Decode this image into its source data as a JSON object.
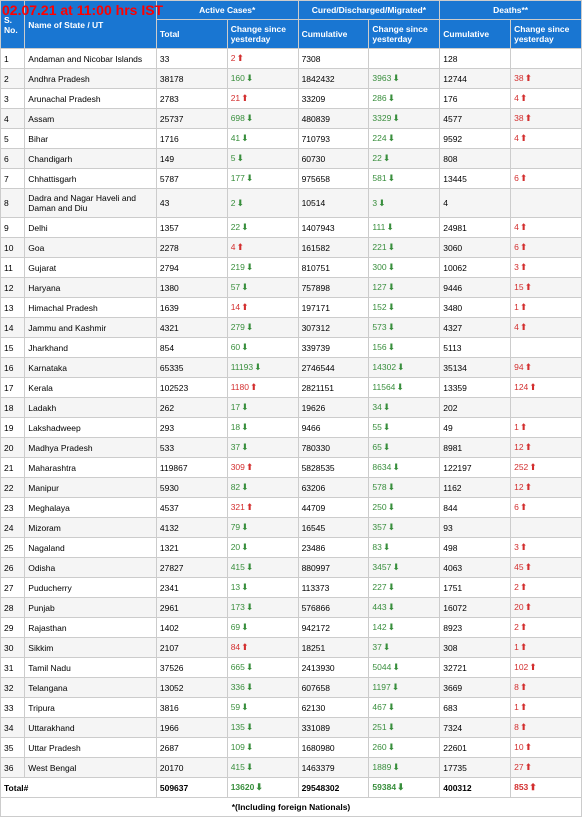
{
  "timestamp": "02.07.21 at 11:00 hrs IST",
  "colors": {
    "header_bg": "#1976d2",
    "header_text": "#ffffff",
    "row_even": "#f5f5f5",
    "row_odd": "#ffffff",
    "border": "#cccccc",
    "up": "#d32f2f",
    "down": "#388e3c",
    "timestamp": "#ff0000"
  },
  "headers": {
    "sno": "S. No.",
    "name": "Name of State / UT",
    "active": "Active Cases*",
    "cured": "Cured/Discharged/Migrated*",
    "deaths": "Deaths**",
    "total": "Total",
    "change": "Change since yesterday",
    "cumulative": "Cumulative"
  },
  "rows": [
    {
      "sno": "1",
      "name": "Andaman and Nicobar Islands",
      "active_total": "33",
      "active_change": "2",
      "active_dir": "up",
      "cured_cum": "7308",
      "cured_change": "",
      "cured_dir": "",
      "deaths_cum": "128",
      "deaths_change": "",
      "deaths_dir": ""
    },
    {
      "sno": "2",
      "name": "Andhra Pradesh",
      "active_total": "38178",
      "active_change": "160",
      "active_dir": "down",
      "cured_cum": "1842432",
      "cured_change": "3963",
      "cured_dir": "down",
      "deaths_cum": "12744",
      "deaths_change": "38",
      "deaths_dir": "up"
    },
    {
      "sno": "3",
      "name": "Arunachal Pradesh",
      "active_total": "2783",
      "active_change": "21",
      "active_dir": "up",
      "cured_cum": "33209",
      "cured_change": "286",
      "cured_dir": "down",
      "deaths_cum": "176",
      "deaths_change": "4",
      "deaths_dir": "up"
    },
    {
      "sno": "4",
      "name": "Assam",
      "active_total": "25737",
      "active_change": "698",
      "active_dir": "down",
      "cured_cum": "480839",
      "cured_change": "3329",
      "cured_dir": "down",
      "deaths_cum": "4577",
      "deaths_change": "38",
      "deaths_dir": "up"
    },
    {
      "sno": "5",
      "name": "Bihar",
      "active_total": "1716",
      "active_change": "41",
      "active_dir": "down",
      "cured_cum": "710793",
      "cured_change": "224",
      "cured_dir": "down",
      "deaths_cum": "9592",
      "deaths_change": "4",
      "deaths_dir": "up"
    },
    {
      "sno": "6",
      "name": "Chandigarh",
      "active_total": "149",
      "active_change": "5",
      "active_dir": "down",
      "cured_cum": "60730",
      "cured_change": "22",
      "cured_dir": "down",
      "deaths_cum": "808",
      "deaths_change": "",
      "deaths_dir": ""
    },
    {
      "sno": "7",
      "name": "Chhattisgarh",
      "active_total": "5787",
      "active_change": "177",
      "active_dir": "down",
      "cured_cum": "975658",
      "cured_change": "581",
      "cured_dir": "down",
      "deaths_cum": "13445",
      "deaths_change": "6",
      "deaths_dir": "up"
    },
    {
      "sno": "8",
      "name": "Dadra and Nagar Haveli and Daman and Diu",
      "active_total": "43",
      "active_change": "2",
      "active_dir": "down",
      "cured_cum": "10514",
      "cured_change": "3",
      "cured_dir": "down",
      "deaths_cum": "4",
      "deaths_change": "",
      "deaths_dir": ""
    },
    {
      "sno": "9",
      "name": "Delhi",
      "active_total": "1357",
      "active_change": "22",
      "active_dir": "down",
      "cured_cum": "1407943",
      "cured_change": "111",
      "cured_dir": "down",
      "deaths_cum": "24981",
      "deaths_change": "4",
      "deaths_dir": "up"
    },
    {
      "sno": "10",
      "name": "Goa",
      "active_total": "2278",
      "active_change": "4",
      "active_dir": "up",
      "cured_cum": "161582",
      "cured_change": "221",
      "cured_dir": "down",
      "deaths_cum": "3060",
      "deaths_change": "6",
      "deaths_dir": "up"
    },
    {
      "sno": "11",
      "name": "Gujarat",
      "active_total": "2794",
      "active_change": "219",
      "active_dir": "down",
      "cured_cum": "810751",
      "cured_change": "300",
      "cured_dir": "down",
      "deaths_cum": "10062",
      "deaths_change": "3",
      "deaths_dir": "up"
    },
    {
      "sno": "12",
      "name": "Haryana",
      "active_total": "1380",
      "active_change": "57",
      "active_dir": "down",
      "cured_cum": "757898",
      "cured_change": "127",
      "cured_dir": "down",
      "deaths_cum": "9446",
      "deaths_change": "15",
      "deaths_dir": "up"
    },
    {
      "sno": "13",
      "name": "Himachal Pradesh",
      "active_total": "1639",
      "active_change": "14",
      "active_dir": "up",
      "cured_cum": "197171",
      "cured_change": "152",
      "cured_dir": "down",
      "deaths_cum": "3480",
      "deaths_change": "1",
      "deaths_dir": "up"
    },
    {
      "sno": "14",
      "name": "Jammu and Kashmir",
      "active_total": "4321",
      "active_change": "279",
      "active_dir": "down",
      "cured_cum": "307312",
      "cured_change": "573",
      "cured_dir": "down",
      "deaths_cum": "4327",
      "deaths_change": "4",
      "deaths_dir": "up"
    },
    {
      "sno": "15",
      "name": "Jharkhand",
      "active_total": "854",
      "active_change": "60",
      "active_dir": "down",
      "cured_cum": "339739",
      "cured_change": "156",
      "cured_dir": "down",
      "deaths_cum": "5113",
      "deaths_change": "",
      "deaths_dir": ""
    },
    {
      "sno": "16",
      "name": "Karnataka",
      "active_total": "65335",
      "active_change": "11193",
      "active_dir": "down",
      "cured_cum": "2746544",
      "cured_change": "14302",
      "cured_dir": "down",
      "deaths_cum": "35134",
      "deaths_change": "94",
      "deaths_dir": "up"
    },
    {
      "sno": "17",
      "name": "Kerala",
      "active_total": "102523",
      "active_change": "1180",
      "active_dir": "up",
      "cured_cum": "2821151",
      "cured_change": "11564",
      "cured_dir": "down",
      "deaths_cum": "13359",
      "deaths_change": "124",
      "deaths_dir": "up"
    },
    {
      "sno": "18",
      "name": "Ladakh",
      "active_total": "262",
      "active_change": "17",
      "active_dir": "down",
      "cured_cum": "19626",
      "cured_change": "34",
      "cured_dir": "down",
      "deaths_cum": "202",
      "deaths_change": "",
      "deaths_dir": ""
    },
    {
      "sno": "19",
      "name": "Lakshadweep",
      "active_total": "293",
      "active_change": "18",
      "active_dir": "down",
      "cured_cum": "9466",
      "cured_change": "55",
      "cured_dir": "down",
      "deaths_cum": "49",
      "deaths_change": "1",
      "deaths_dir": "up"
    },
    {
      "sno": "20",
      "name": "Madhya Pradesh",
      "active_total": "533",
      "active_change": "37",
      "active_dir": "down",
      "cured_cum": "780330",
      "cured_change": "65",
      "cured_dir": "down",
      "deaths_cum": "8981",
      "deaths_change": "12",
      "deaths_dir": "up"
    },
    {
      "sno": "21",
      "name": "Maharashtra",
      "active_total": "119867",
      "active_change": "309",
      "active_dir": "up",
      "cured_cum": "5828535",
      "cured_change": "8634",
      "cured_dir": "down",
      "deaths_cum": "122197",
      "deaths_change": "252",
      "deaths_dir": "up"
    },
    {
      "sno": "22",
      "name": "Manipur",
      "active_total": "5930",
      "active_change": "82",
      "active_dir": "down",
      "cured_cum": "63206",
      "cured_change": "578",
      "cured_dir": "down",
      "deaths_cum": "1162",
      "deaths_change": "12",
      "deaths_dir": "up"
    },
    {
      "sno": "23",
      "name": "Meghalaya",
      "active_total": "4537",
      "active_change": "321",
      "active_dir": "up",
      "cured_cum": "44709",
      "cured_change": "250",
      "cured_dir": "down",
      "deaths_cum": "844",
      "deaths_change": "6",
      "deaths_dir": "up"
    },
    {
      "sno": "24",
      "name": "Mizoram",
      "active_total": "4132",
      "active_change": "79",
      "active_dir": "down",
      "cured_cum": "16545",
      "cured_change": "357",
      "cured_dir": "down",
      "deaths_cum": "93",
      "deaths_change": "",
      "deaths_dir": ""
    },
    {
      "sno": "25",
      "name": "Nagaland",
      "active_total": "1321",
      "active_change": "20",
      "active_dir": "down",
      "cured_cum": "23486",
      "cured_change": "83",
      "cured_dir": "down",
      "deaths_cum": "498",
      "deaths_change": "3",
      "deaths_dir": "up"
    },
    {
      "sno": "26",
      "name": "Odisha",
      "active_total": "27827",
      "active_change": "415",
      "active_dir": "down",
      "cured_cum": "880997",
      "cured_change": "3457",
      "cured_dir": "down",
      "deaths_cum": "4063",
      "deaths_change": "45",
      "deaths_dir": "up"
    },
    {
      "sno": "27",
      "name": "Puducherry",
      "active_total": "2341",
      "active_change": "13",
      "active_dir": "down",
      "cured_cum": "113373",
      "cured_change": "227",
      "cured_dir": "down",
      "deaths_cum": "1751",
      "deaths_change": "2",
      "deaths_dir": "up"
    },
    {
      "sno": "28",
      "name": "Punjab",
      "active_total": "2961",
      "active_change": "173",
      "active_dir": "down",
      "cured_cum": "576866",
      "cured_change": "443",
      "cured_dir": "down",
      "deaths_cum": "16072",
      "deaths_change": "20",
      "deaths_dir": "up"
    },
    {
      "sno": "29",
      "name": "Rajasthan",
      "active_total": "1402",
      "active_change": "69",
      "active_dir": "down",
      "cured_cum": "942172",
      "cured_change": "142",
      "cured_dir": "down",
      "deaths_cum": "8923",
      "deaths_change": "2",
      "deaths_dir": "up"
    },
    {
      "sno": "30",
      "name": "Sikkim",
      "active_total": "2107",
      "active_change": "84",
      "active_dir": "up",
      "cured_cum": "18251",
      "cured_change": "37",
      "cured_dir": "down",
      "deaths_cum": "308",
      "deaths_change": "1",
      "deaths_dir": "up"
    },
    {
      "sno": "31",
      "name": "Tamil Nadu",
      "active_total": "37526",
      "active_change": "665",
      "active_dir": "down",
      "cured_cum": "2413930",
      "cured_change": "5044",
      "cured_dir": "down",
      "deaths_cum": "32721",
      "deaths_change": "102",
      "deaths_dir": "up"
    },
    {
      "sno": "32",
      "name": "Telangana",
      "active_total": "13052",
      "active_change": "336",
      "active_dir": "down",
      "cured_cum": "607658",
      "cured_change": "1197",
      "cured_dir": "down",
      "deaths_cum": "3669",
      "deaths_change": "8",
      "deaths_dir": "up"
    },
    {
      "sno": "33",
      "name": "Tripura",
      "active_total": "3816",
      "active_change": "59",
      "active_dir": "down",
      "cured_cum": "62130",
      "cured_change": "467",
      "cured_dir": "down",
      "deaths_cum": "683",
      "deaths_change": "1",
      "deaths_dir": "up"
    },
    {
      "sno": "34",
      "name": "Uttarakhand",
      "active_total": "1966",
      "active_change": "135",
      "active_dir": "down",
      "cured_cum": "331089",
      "cured_change": "251",
      "cured_dir": "down",
      "deaths_cum": "7324",
      "deaths_change": "8",
      "deaths_dir": "up"
    },
    {
      "sno": "35",
      "name": "Uttar Pradesh",
      "active_total": "2687",
      "active_change": "109",
      "active_dir": "down",
      "cured_cum": "1680980",
      "cured_change": "260",
      "cured_dir": "down",
      "deaths_cum": "22601",
      "deaths_change": "10",
      "deaths_dir": "up"
    },
    {
      "sno": "36",
      "name": "West Bengal",
      "active_total": "20170",
      "active_change": "415",
      "active_dir": "down",
      "cured_cum": "1463379",
      "cured_change": "1889",
      "cured_dir": "down",
      "deaths_cum": "17735",
      "deaths_change": "27",
      "deaths_dir": "up"
    }
  ],
  "totals": {
    "label": "Total#",
    "active_total": "509637",
    "active_change": "13620",
    "active_dir": "down",
    "cured_cum": "29548302",
    "cured_change": "59384",
    "cured_dir": "down",
    "deaths_cum": "400312",
    "deaths_change": "853",
    "deaths_dir": "up"
  },
  "footnote": "*(Including foreign Nationals)"
}
